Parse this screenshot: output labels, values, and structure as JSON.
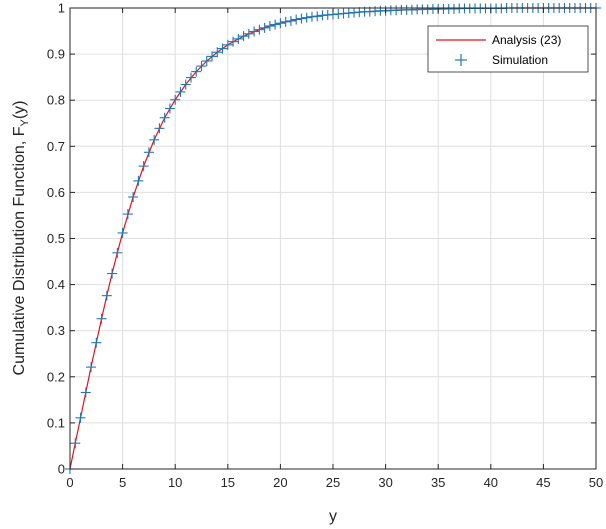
{
  "chart_data": {
    "type": "line",
    "xlabel": "y",
    "ylabel_main": "Cumulative Distribution Function, F",
    "ylabel_sub": "Y",
    "ylabel_tail": "(y)",
    "xlim": [
      0,
      50
    ],
    "ylim": [
      0,
      1
    ],
    "x_ticks": [
      "0",
      "5",
      "10",
      "15",
      "20",
      "25",
      "30",
      "35",
      "40",
      "45",
      "50"
    ],
    "y_ticks": [
      "0",
      "0.1",
      "0.2",
      "0.3",
      "0.4",
      "0.5",
      "0.6",
      "0.7",
      "0.8",
      "0.9",
      "1"
    ],
    "grid": true,
    "legend_position": "top-right",
    "series": [
      {
        "name": "Analysis (23)",
        "style": "line",
        "color": "#e8101a",
        "x": [
          0,
          0.5,
          1,
          1.5,
          2,
          2.5,
          3,
          3.5,
          4,
          4.5,
          5,
          6,
          7,
          8,
          9,
          10,
          11,
          12,
          13,
          14,
          15,
          16,
          17,
          18,
          19,
          20,
          21,
          22,
          23,
          24,
          25,
          26,
          27,
          28,
          29,
          30,
          32,
          34,
          36,
          38,
          40,
          42,
          44,
          46,
          48,
          50
        ],
        "y": [
          0,
          0.056,
          0.111,
          0.166,
          0.221,
          0.274,
          0.326,
          0.376,
          0.424,
          0.469,
          0.512,
          0.59,
          0.657,
          0.714,
          0.762,
          0.801,
          0.834,
          0.862,
          0.885,
          0.904,
          0.92,
          0.933,
          0.944,
          0.953,
          0.961,
          0.967,
          0.972,
          0.977,
          0.981,
          0.984,
          0.986,
          0.988,
          0.99,
          0.992,
          0.993,
          0.994,
          0.996,
          0.997,
          0.998,
          0.999,
          0.999,
          1.0,
          1.0,
          1.0,
          1.0,
          1.0
        ]
      },
      {
        "name": "Simulation",
        "style": "marker",
        "marker": "plus",
        "color": "#1f77b4",
        "x": [
          0,
          0.5,
          1,
          1.5,
          2,
          2.5,
          3,
          3.5,
          4,
          4.5,
          5,
          5.5,
          6,
          6.5,
          7,
          7.5,
          8,
          8.5,
          9,
          9.5,
          10,
          10.5,
          11,
          11.5,
          12,
          12.5,
          13,
          13.5,
          14,
          14.5,
          15,
          15.5,
          16,
          16.5,
          17,
          17.5,
          18,
          18.5,
          19,
          19.5,
          20,
          20.5,
          21,
          21.5,
          22,
          22.5,
          23,
          23.5,
          24,
          24.5,
          25,
          25.5,
          26,
          26.5,
          27,
          27.5,
          28,
          28.5,
          29,
          29.5,
          30,
          30.5,
          31,
          31.5,
          32,
          32.5,
          33,
          33.5,
          34,
          34.5,
          35,
          35.5,
          36,
          36.5,
          37,
          37.5,
          38,
          38.5,
          39,
          39.5,
          40,
          40.5,
          41,
          41.5,
          42,
          42.5,
          43,
          43.5,
          44,
          44.5,
          45,
          45.5,
          46,
          46.5,
          47,
          47.5,
          48,
          48.5,
          49,
          49.5,
          50
        ],
        "y": [
          0,
          0.056,
          0.111,
          0.166,
          0.221,
          0.274,
          0.326,
          0.376,
          0.424,
          0.469,
          0.512,
          0.553,
          0.59,
          0.625,
          0.657,
          0.687,
          0.714,
          0.739,
          0.762,
          0.782,
          0.801,
          0.818,
          0.834,
          0.849,
          0.862,
          0.874,
          0.885,
          0.895,
          0.904,
          0.912,
          0.92,
          0.927,
          0.933,
          0.939,
          0.944,
          0.949,
          0.953,
          0.957,
          0.961,
          0.964,
          0.967,
          0.97,
          0.972,
          0.975,
          0.977,
          0.979,
          0.981,
          0.982,
          0.984,
          0.985,
          0.986,
          0.987,
          0.988,
          0.989,
          0.99,
          0.991,
          0.992,
          0.992,
          0.993,
          0.994,
          0.994,
          0.995,
          0.995,
          0.996,
          0.996,
          0.996,
          0.997,
          0.997,
          0.997,
          0.998,
          0.998,
          0.998,
          0.998,
          0.998,
          0.999,
          0.999,
          0.999,
          0.999,
          0.999,
          0.999,
          0.999,
          0.999,
          0.999,
          1.0,
          1.0,
          1.0,
          1.0,
          1.0,
          1.0,
          1.0,
          1.0,
          1.0,
          1.0,
          1.0,
          1.0,
          1.0,
          1.0,
          1.0,
          1.0,
          1.0,
          1.0
        ]
      }
    ]
  }
}
